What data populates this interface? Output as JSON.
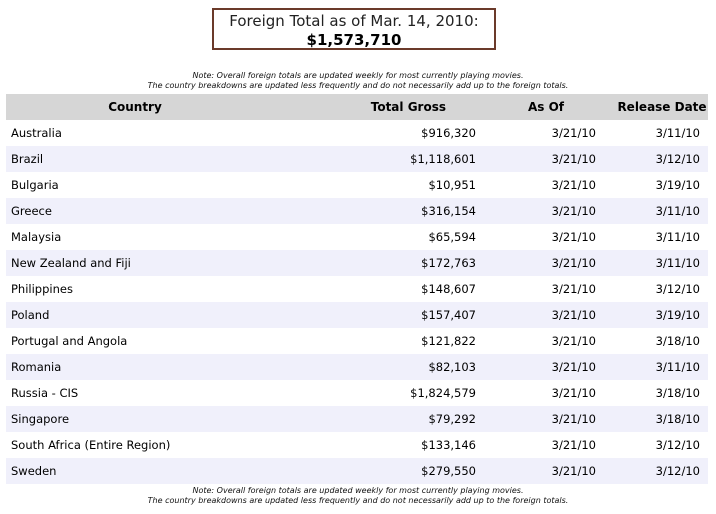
{
  "header": {
    "title": "Foreign Total as of Mar. 14, 2010:",
    "total": "$1,573,710"
  },
  "note": {
    "line1": "Note: Overall foreign totals are updated weekly for most currently playing movies.",
    "line2": "The country breakdowns are updated less frequently and do not necessarily add up to the foreign totals."
  },
  "table": {
    "columns": [
      "Country",
      "Total Gross",
      "As Of",
      "Release Date"
    ],
    "rows": [
      {
        "country": "Australia",
        "gross": "$916,320",
        "as_of": "3/21/10",
        "release": "3/11/10"
      },
      {
        "country": "Brazil",
        "gross": "$1,118,601",
        "as_of": "3/21/10",
        "release": "3/12/10"
      },
      {
        "country": "Bulgaria",
        "gross": "$10,951",
        "as_of": "3/21/10",
        "release": "3/19/10"
      },
      {
        "country": "Greece",
        "gross": "$316,154",
        "as_of": "3/21/10",
        "release": "3/11/10"
      },
      {
        "country": "Malaysia",
        "gross": "$65,594",
        "as_of": "3/21/10",
        "release": "3/11/10"
      },
      {
        "country": "New Zealand and Fiji",
        "gross": "$172,763",
        "as_of": "3/21/10",
        "release": "3/11/10"
      },
      {
        "country": "Philippines",
        "gross": "$148,607",
        "as_of": "3/21/10",
        "release": "3/12/10"
      },
      {
        "country": "Poland",
        "gross": "$157,407",
        "as_of": "3/21/10",
        "release": "3/19/10"
      },
      {
        "country": "Portugal and Angola",
        "gross": "$121,822",
        "as_of": "3/21/10",
        "release": "3/18/10"
      },
      {
        "country": "Romania",
        "gross": "$82,103",
        "as_of": "3/21/10",
        "release": "3/11/10"
      },
      {
        "country": "Russia - CIS",
        "gross": "$1,824,579",
        "as_of": "3/21/10",
        "release": "3/18/10"
      },
      {
        "country": "Singapore",
        "gross": "$79,292",
        "as_of": "3/21/10",
        "release": "3/18/10"
      },
      {
        "country": "South Africa (Entire Region)",
        "gross": "$133,146",
        "as_of": "3/21/10",
        "release": "3/12/10"
      },
      {
        "country": "Sweden",
        "gross": "$279,550",
        "as_of": "3/21/10",
        "release": "3/12/10"
      }
    ]
  }
}
